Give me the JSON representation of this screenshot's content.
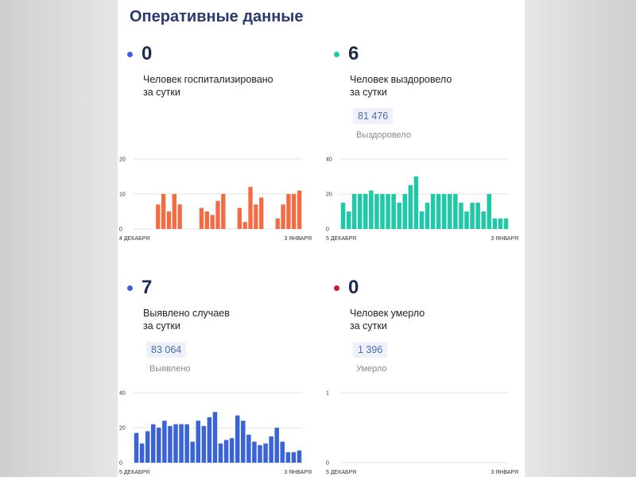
{
  "page": {
    "title": "Оперативные данные"
  },
  "stats": [
    {
      "value": "0",
      "label_line1": "Человек госпитализировано",
      "label_line2": "за сутки",
      "total": "",
      "total_label": "",
      "dot_color": "#3b63d8"
    },
    {
      "value": "6",
      "label_line1": "Человек выздоровело",
      "label_line2": "за сутки",
      "total": "81 476",
      "total_label": "Выздоровело",
      "dot_color": "#1fc8a6"
    },
    {
      "value": "7",
      "label_line1": "Выявлено случаев",
      "label_line2": "за сутки",
      "total": "83 064",
      "total_label": "Выявлено",
      "dot_color": "#3b63d8"
    },
    {
      "value": "0",
      "label_line1": "Человек умерло",
      "label_line2": "за сутки",
      "total": "1 396",
      "total_label": "Умерло",
      "dot_color": "#c21f2f"
    }
  ],
  "chart_data": [
    {
      "type": "bar",
      "color": "#f26b42",
      "ylim": [
        0,
        20
      ],
      "yticks": [
        0,
        10,
        20
      ],
      "x_start_label": "4 ДЕКАБРЯ",
      "x_end_label": "3 ЯНВАРЯ",
      "values": [
        0,
        0,
        0,
        0,
        7,
        10,
        5,
        10,
        7,
        0,
        0,
        0,
        6,
        5,
        4,
        8,
        10,
        0,
        0,
        6,
        2,
        12,
        7,
        9,
        0,
        0,
        3,
        7,
        10,
        10,
        11
      ]
    },
    {
      "type": "bar",
      "color": "#1fc8a6",
      "ylim": [
        0,
        40
      ],
      "yticks": [
        0,
        20,
        40
      ],
      "x_start_label": "5 ДЕКАБРЯ",
      "x_end_label": "3 ЯНВАРЯ",
      "values": [
        15,
        10,
        20,
        20,
        20,
        22,
        20,
        20,
        20,
        20,
        15,
        20,
        25,
        30,
        10,
        15,
        20,
        20,
        20,
        20,
        20,
        15,
        10,
        15,
        15,
        10,
        20,
        6,
        6,
        6
      ]
    },
    {
      "type": "bar",
      "color": "#3b63d8",
      "ylim": [
        0,
        40
      ],
      "yticks": [
        0,
        20,
        40
      ],
      "x_start_label": "5 ДЕКАБРЯ",
      "x_end_label": "3 ЯНВАРЯ",
      "values": [
        17,
        11,
        18,
        22,
        20,
        24,
        21,
        22,
        22,
        22,
        12,
        24,
        21,
        26,
        29,
        11,
        13,
        14,
        27,
        24,
        16,
        12,
        10,
        11,
        15,
        20,
        12,
        6,
        6,
        7
      ]
    },
    {
      "type": "bar",
      "color": "#c21f2f",
      "ylim": [
        0,
        1
      ],
      "yticks": [
        0,
        1
      ],
      "x_start_label": "5 ДЕКАБРЯ",
      "x_end_label": "3 ЯНВАРЯ",
      "values": [
        0,
        0,
        0,
        0,
        0,
        0,
        0,
        0,
        0,
        0,
        0,
        0,
        0,
        0,
        0,
        0,
        0,
        0,
        0,
        0,
        0,
        0,
        0,
        0,
        0,
        0,
        0,
        0,
        0,
        0
      ]
    }
  ]
}
